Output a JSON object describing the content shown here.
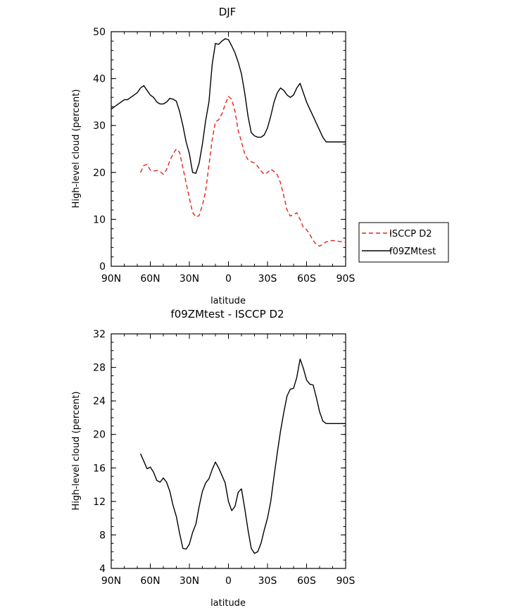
{
  "chart_data": [
    {
      "type": "line",
      "title": "DJF",
      "xlabel": "latitude",
      "ylabel": "High-level cloud (percent)",
      "xlim": [
        -90,
        90
      ],
      "ylim": [
        0,
        50
      ],
      "xticks": [
        -90,
        -60,
        -30,
        0,
        30,
        60,
        90
      ],
      "xtick_labels": [
        "90N",
        "60N",
        "30N",
        "0",
        "30S",
        "60S",
        "90S"
      ],
      "yticks": [
        0,
        10,
        20,
        30,
        40,
        50
      ],
      "ytick_labels": [
        "0",
        "10",
        "20",
        "30",
        "40",
        "50"
      ],
      "legend_position": "right",
      "series": [
        {
          "name": "ISCCP D2",
          "color": "#e8211b",
          "dash": "dashed",
          "x": [
            -67.5,
            -65,
            -62.5,
            -60,
            -57.5,
            -55,
            -52.5,
            -50,
            -47.5,
            -45,
            -42.5,
            -40,
            -37.5,
            -35,
            -32.5,
            -30,
            -27.5,
            -25,
            -22.5,
            -20,
            -17.5,
            -15,
            -12.5,
            -10,
            -7.5,
            -5,
            -2.5,
            0,
            2.5,
            5,
            7.5,
            10,
            12.5,
            15,
            17.5,
            20,
            22.5,
            25,
            27.5,
            30,
            32.5,
            35,
            37.5,
            40,
            42.5,
            45,
            47.5,
            50,
            52.5,
            55,
            57.5,
            60,
            62.5,
            65,
            67.5,
            70,
            72.5,
            75,
            77.5,
            80,
            82.5,
            85,
            87.5,
            90
          ],
          "y": [
            20.0,
            21.5,
            21.7,
            20.5,
            20.3,
            20.4,
            20.2,
            19.6,
            20.6,
            22.5,
            24.0,
            25.0,
            24.3,
            21.0,
            17.8,
            14.5,
            11.5,
            10.5,
            10.8,
            13.0,
            16.0,
            21.5,
            27.0,
            30.8,
            31.2,
            32.5,
            34.5,
            36.2,
            35.6,
            33.0,
            29.0,
            26.5,
            24.0,
            22.7,
            22.3,
            22.0,
            21.3,
            20.3,
            19.6,
            20.0,
            20.7,
            20.2,
            19.5,
            17.8,
            15.0,
            12.0,
            10.7,
            11.0,
            11.4,
            10.0,
            8.3,
            7.8,
            6.8,
            5.5,
            4.6,
            4.3,
            4.7,
            5.2,
            5.4,
            5.5,
            5.4,
            5.3,
            5.2,
            5.1
          ]
        },
        {
          "name": "f09ZMtest",
          "color": "#000000",
          "dash": "solid",
          "x": [
            -90,
            -87.5,
            -85,
            -82.5,
            -80,
            -77.5,
            -75,
            -72.5,
            -70,
            -67.5,
            -65,
            -62.5,
            -60,
            -57.5,
            -55,
            -52.5,
            -50,
            -47.5,
            -45,
            -42.5,
            -40,
            -37.5,
            -35,
            -32.5,
            -30,
            -27.5,
            -25,
            -22.5,
            -20,
            -17.5,
            -15,
            -12.5,
            -10,
            -7.5,
            -5,
            -2.5,
            0,
            2.5,
            5,
            7.5,
            10,
            12.5,
            15,
            17.5,
            20,
            22.5,
            25,
            27.5,
            30,
            32.5,
            35,
            37.5,
            40,
            42.5,
            45,
            47.5,
            50,
            52.5,
            55,
            57.5,
            60,
            62.5,
            65,
            67.5,
            70,
            72.5,
            75,
            77.5,
            80,
            82.5,
            85,
            87.5,
            90
          ],
          "y": [
            33.5,
            34.0,
            34.5,
            35.0,
            35.5,
            35.5,
            36.0,
            36.5,
            37.0,
            38.0,
            38.5,
            37.5,
            36.5,
            36.0,
            35.0,
            34.6,
            34.6,
            35.0,
            35.8,
            35.6,
            35.2,
            33.0,
            30.0,
            26.5,
            24.0,
            20.0,
            19.8,
            22.0,
            26.0,
            31.0,
            35.0,
            43.0,
            47.5,
            47.3,
            48.0,
            48.5,
            48.3,
            47.0,
            45.5,
            43.5,
            41.0,
            37.0,
            32.0,
            28.5,
            27.8,
            27.5,
            27.5,
            28.0,
            29.5,
            32.0,
            35.0,
            37.0,
            38.0,
            37.5,
            36.5,
            36.0,
            36.5,
            38.0,
            39.0,
            37.0,
            35.0,
            33.5,
            32.0,
            30.5,
            29.0,
            27.5,
            26.5,
            26.5,
            26.5,
            26.5,
            26.5,
            26.5,
            26.5
          ]
        }
      ]
    },
    {
      "type": "line",
      "title": "f09ZMtest - ISCCP D2",
      "xlabel": "latitude",
      "ylabel": "High-level cloud (percent)",
      "xlim": [
        -90,
        90
      ],
      "ylim": [
        4,
        32
      ],
      "xticks": [
        -90,
        -60,
        -30,
        0,
        30,
        60,
        90
      ],
      "xtick_labels": [
        "90N",
        "60N",
        "30N",
        "0",
        "30S",
        "60S",
        "90S"
      ],
      "yticks": [
        4,
        8,
        12,
        16,
        20,
        24,
        28,
        32
      ],
      "ytick_labels": [
        "4",
        "8",
        "12",
        "16",
        "20",
        "24",
        "28",
        "32"
      ],
      "series": [
        {
          "color": "#000000",
          "dash": "solid",
          "x": [
            -67.5,
            -65,
            -62.5,
            -60,
            -57.5,
            -55,
            -52.5,
            -50,
            -47.5,
            -45,
            -42.5,
            -40,
            -37.5,
            -35,
            -32.5,
            -30,
            -27.5,
            -25,
            -22.5,
            -20,
            -17.5,
            -15,
            -12.5,
            -10,
            -7.5,
            -5,
            -2.5,
            0,
            2.5,
            5,
            7.5,
            10,
            12.5,
            15,
            17.5,
            20,
            22.5,
            25,
            27.5,
            30,
            32.5,
            35,
            37.5,
            40,
            42.5,
            45,
            47.5,
            50,
            52.5,
            55,
            57.5,
            60,
            62.5,
            65,
            67.5,
            70,
            72.5,
            75,
            77.5,
            80,
            82.5,
            85,
            87.5,
            90
          ],
          "y": [
            17.7,
            16.8,
            15.9,
            16.1,
            15.5,
            14.5,
            14.3,
            14.8,
            14.3,
            13.2,
            11.5,
            10.2,
            8.2,
            6.4,
            6.3,
            6.9,
            8.3,
            9.3,
            11.4,
            13.2,
            14.2,
            14.7,
            15.8,
            16.7,
            16.0,
            15.1,
            14.2,
            12.0,
            10.9,
            11.4,
            13.1,
            13.5,
            11.2,
            8.6,
            6.4,
            5.8,
            6.0,
            7.0,
            8.6,
            10.0,
            12.0,
            15.0,
            17.8,
            20.4,
            22.6,
            24.6,
            25.4,
            25.5,
            26.8,
            29.0,
            27.9,
            26.5,
            26.0,
            25.9,
            24.4,
            22.7,
            21.6,
            21.3,
            21.3,
            21.3,
            21.3,
            21.3,
            21.3,
            21.3
          ]
        }
      ]
    }
  ]
}
